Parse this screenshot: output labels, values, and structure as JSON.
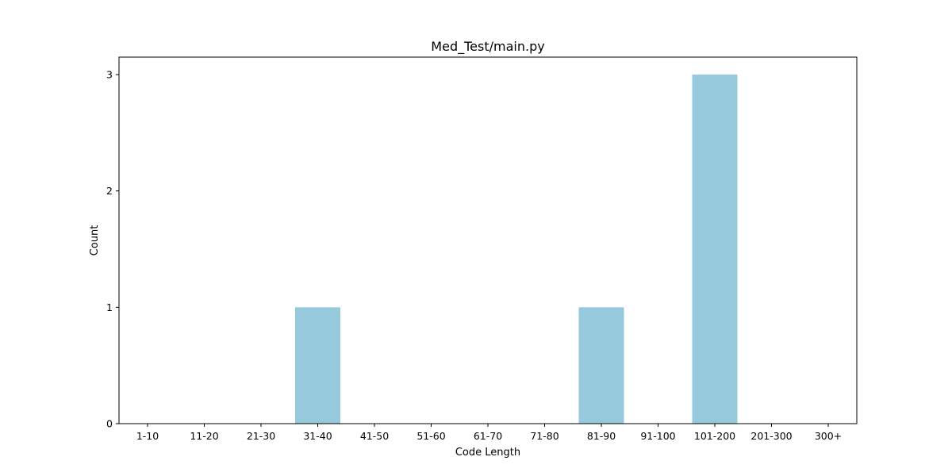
{
  "chart_data": {
    "type": "bar",
    "title": "Med_Test/main.py",
    "xlabel": "Code Length",
    "ylabel": "Count",
    "categories": [
      "1-10",
      "11-20",
      "21-30",
      "31-40",
      "41-50",
      "51-60",
      "61-70",
      "71-80",
      "81-90",
      "91-100",
      "101-200",
      "201-300",
      "300+"
    ],
    "values": [
      0,
      0,
      0,
      1,
      0,
      0,
      0,
      0,
      1,
      0,
      3,
      0,
      0
    ],
    "ylim": [
      0,
      3.15
    ],
    "yticks": [
      0,
      1,
      2,
      3
    ],
    "bar_color": "#96c9dc",
    "grid": false,
    "legend": "none"
  }
}
